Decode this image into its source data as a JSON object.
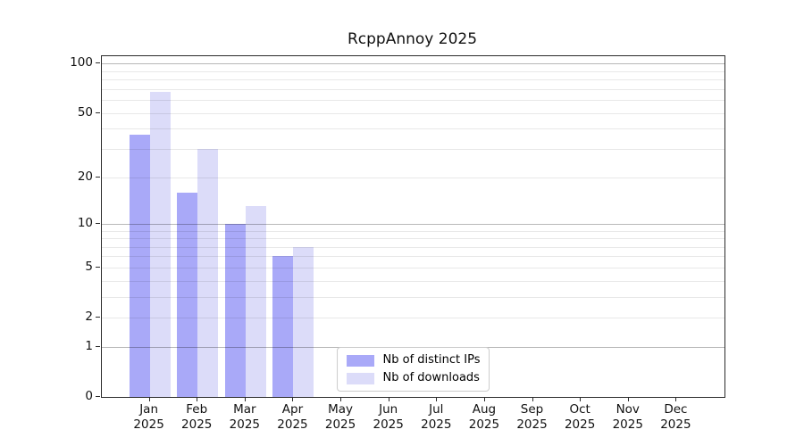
{
  "chart_data": {
    "type": "bar",
    "title": "RcppAnnoy 2025",
    "categories": [
      "Jan 2025",
      "Feb 2025",
      "Mar 2025",
      "Apr 2025",
      "May 2025",
      "Jun 2025",
      "Jul 2025",
      "Aug 2025",
      "Sep 2025",
      "Oct 2025",
      "Nov 2025",
      "Dec 2025"
    ],
    "series": [
      {
        "name": "Nb of distinct IPs",
        "color": "#a9a9f8",
        "values": [
          37,
          16,
          10,
          6,
          0,
          0,
          0,
          0,
          0,
          0,
          0,
          0
        ]
      },
      {
        "name": "Nb of downloads",
        "color": "#dcdcf9",
        "values": [
          67,
          30,
          13,
          7,
          0,
          0,
          0,
          0,
          0,
          0,
          0,
          0
        ]
      }
    ],
    "xlabel": "",
    "ylabel": "",
    "yscale": "log1p",
    "ylim": [
      0,
      111
    ],
    "yticks": [
      0,
      1,
      2,
      5,
      10,
      20,
      50,
      100
    ],
    "gridlines": {
      "major": [
        1,
        10,
        100
      ],
      "minor": [
        2,
        3,
        4,
        5,
        6,
        7,
        8,
        9,
        20,
        30,
        40,
        50,
        60,
        70,
        80,
        90
      ]
    },
    "grid": true,
    "legend_position": "lower center"
  },
  "colors": {
    "major_grid": "rgba(0,0,0,0.28)",
    "minor_grid": "rgba(0,0,0,0.09)",
    "axis_frame": "#2b2b2b",
    "legend_border": "#cccccc",
    "background": "#ffffff"
  }
}
